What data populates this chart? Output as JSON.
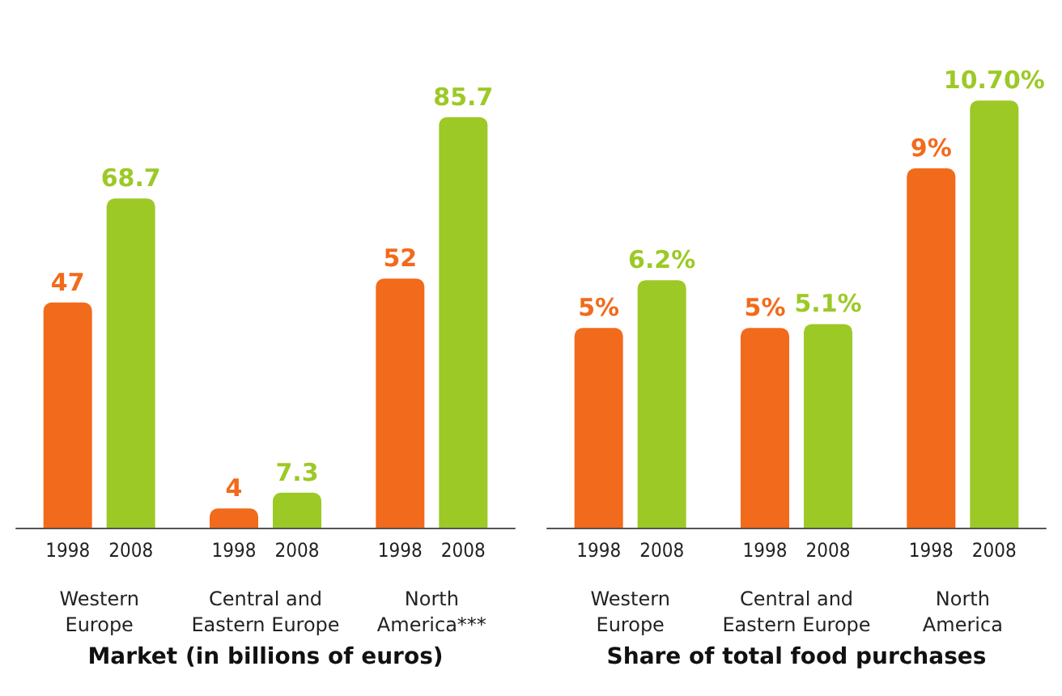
{
  "chart_data": [
    {
      "type": "bar",
      "title": "Market (in billions of euros)",
      "categories": [
        "Western\nEurope",
        "Central and\nEastern Europe",
        "North\nAmerica***"
      ],
      "series": [
        {
          "name": "1998",
          "color": "#f26a1b",
          "values": [
            47,
            4,
            52
          ]
        },
        {
          "name": "2008",
          "color": "#9cc926",
          "values": [
            68.7,
            7.3,
            85.7
          ]
        }
      ],
      "data_labels": true
    },
    {
      "type": "bar",
      "title": "Share of total food purchases",
      "categories": [
        "Western\nEurope",
        "Central and\nEastern Europe",
        "North\nAmerica"
      ],
      "series": [
        {
          "name": "1998",
          "color": "#f26a1b",
          "values": [
            5,
            5,
            9
          ],
          "value_labels": [
            "5%",
            "5%",
            "9%"
          ]
        },
        {
          "name": "2008",
          "color": "#9cc926",
          "values": [
            6.2,
            5.1,
            10.7
          ],
          "value_labels": [
            "6.2%",
            "5.1%",
            "10.70%"
          ]
        }
      ]
    }
  ]
}
